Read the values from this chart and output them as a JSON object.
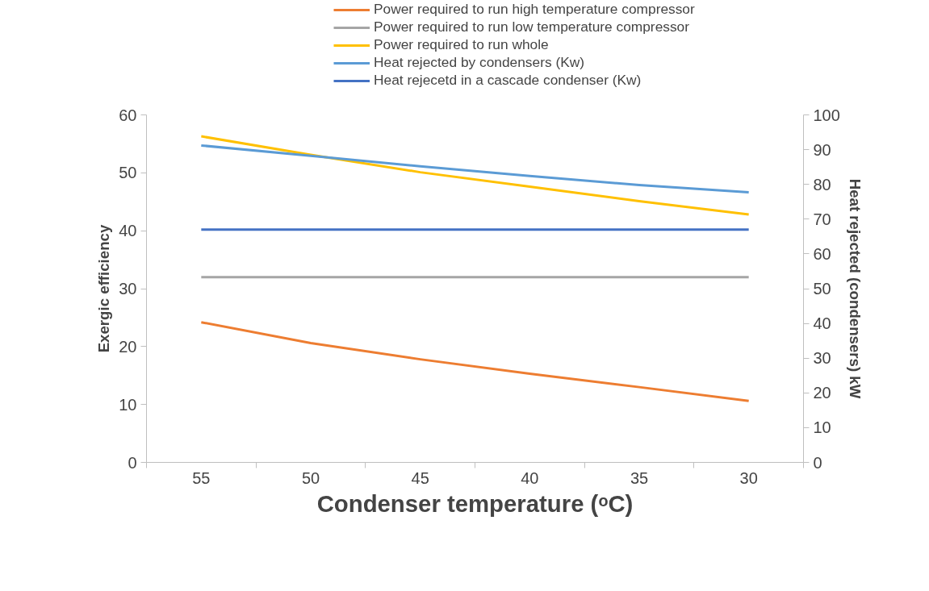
{
  "chart_data": {
    "type": "line",
    "xlabel": "Condenser temperature (ᵒC)",
    "ylabel": "Exergic efficiency",
    "y2label": "Heat rejected (condensers) kW",
    "categories": [
      "55",
      "50",
      "45",
      "40",
      "35",
      "30"
    ],
    "ylim": [
      0,
      60
    ],
    "yticks": [
      0,
      10,
      20,
      30,
      40,
      50,
      60
    ],
    "y2lim": [
      0,
      100
    ],
    "y2ticks": [
      0,
      10,
      20,
      30,
      40,
      50,
      60,
      70,
      80,
      90,
      100
    ],
    "grid": false,
    "legend": "top",
    "marker": "none",
    "line_style": "solid",
    "series": [
      {
        "name": "Power required to run high temperature compressor",
        "color": "#ed7d31",
        "values": [
          24.2,
          20.6,
          17.8,
          15.3,
          13.0,
          10.6
        ]
      },
      {
        "name": "Power required to run low temperature compressor",
        "color": "#a5a5a5",
        "values": [
          32.0,
          32.0,
          32.0,
          32.0,
          32.0,
          32.0
        ]
      },
      {
        "name": "Power required to run whole",
        "color": "#ffc000",
        "values": [
          56.3,
          53.1,
          50.1,
          47.6,
          45.1,
          42.8
        ]
      },
      {
        "name": "Heat rejected by condensers (Kw)",
        "color": "#5b9bd5",
        "axis": "y2",
        "values": [
          91.2,
          88.2,
          85.2,
          82.4,
          79.8,
          77.7
        ]
      },
      {
        "name": "Heat rejecetd in a cascade condenser (Kw)",
        "color": "#4472c4",
        "axis": "y2",
        "values": [
          67.0,
          67.0,
          67.0,
          67.0,
          67.0,
          67.0
        ]
      }
    ]
  }
}
